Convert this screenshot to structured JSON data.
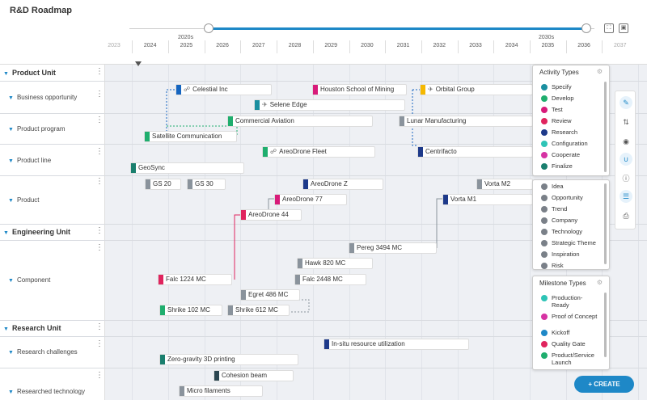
{
  "title": "R&D Roadmap",
  "decades": [
    "2020s",
    "2030s"
  ],
  "years": [
    "2023",
    "2024",
    "2025",
    "2026",
    "2027",
    "2028",
    "2029",
    "2030",
    "2031",
    "2032",
    "2033",
    "2034",
    "2035",
    "2036",
    "2037"
  ],
  "slider": {
    "start": 0.17,
    "end": 0.99
  },
  "units": [
    {
      "label": "Product Unit"
    },
    {
      "label": "Engineering Unit"
    },
    {
      "label": "Research Unit"
    }
  ],
  "rows": {
    "bo": "Business opportunity",
    "pp": "Product program",
    "pl": "Product line",
    "pr": "Product",
    "co": "Component",
    "rc": "Research challenges",
    "rt": "Researched technology"
  },
  "bars": {
    "celestial": "Celestial Inc",
    "houston": "Houston School of Mining",
    "orbital": "Orbital Group",
    "selene": "Selene Edge",
    "commercial": "Commercial Aviation",
    "lunar": "Lunar Manufacturing",
    "satellite": "Satellite Communication",
    "areofleet": "AreoDrone Fleet",
    "centrifacto": "Centrifacto",
    "geosync": "GeoSync",
    "gs20": "GS 20",
    "gs30": "GS 30",
    "areoz": "AreoDrone Z",
    "vortam2": "Vorta M2",
    "areo77": "AreoDrone 77",
    "vortam1": "Vorta M1",
    "areo44": "AreoDrone 44",
    "pereg": "Pereg 3494 MC",
    "hawk": "Hawk 820 MC",
    "falc1224": "Falc 1224 MC",
    "falc2448": "Falc 2448 MC",
    "egret": "Egret 486 MC",
    "shrike102": "Shrike 102 MC",
    "shrike612": "Shrike 612 MC",
    "insitu": "In-situ resource utilization",
    "zerog": "Zero-gravity 3D printing",
    "cohesion": "Cohesion beam",
    "micro": "Micro filaments"
  },
  "colors": {
    "blue": "#1565c0",
    "teal": "#1a8fa0",
    "green": "#1fae6e",
    "pink": "#d81b7a",
    "gray": "#8a939c",
    "navy": "#1e3a8a",
    "yellow": "#f5b800",
    "red": "#e0245e",
    "dark": "#2b4650",
    "accent": "#1e88c7"
  },
  "activity_types": {
    "title": "Activity Types",
    "items": [
      {
        "label": "Specify",
        "color": "#1a8fa0"
      },
      {
        "label": "Develop",
        "color": "#1fae6e"
      },
      {
        "label": "Test",
        "color": "#d81b7a"
      },
      {
        "label": "Review",
        "color": "#e0245e"
      },
      {
        "label": "Research",
        "color": "#1e3a8a"
      },
      {
        "label": "Configuration",
        "color": "#2ec4b6"
      },
      {
        "label": "Cooperate",
        "color": "#d633a3"
      },
      {
        "label": "Finalize",
        "color": "#1a7f6e"
      }
    ]
  },
  "entity_types": {
    "items": [
      "Idea",
      "Opportunity",
      "Trend",
      "Company",
      "Technology",
      "Strategic Theme",
      "Inspiration",
      "Risk"
    ]
  },
  "milestone_types": {
    "title": "Milestone Types",
    "items": [
      {
        "label": "Production-Ready",
        "color": "#2ec4b6"
      },
      {
        "label": "Proof of Concept",
        "color": "#d633a3"
      },
      {
        "label": "Kickoff",
        "color": "#1e88c7"
      },
      {
        "label": "Quality Gate",
        "color": "#e0245e"
      },
      {
        "label": "Product/Service Launch",
        "color": "#1fae6e"
      }
    ]
  },
  "create_label": "+ CREATE"
}
